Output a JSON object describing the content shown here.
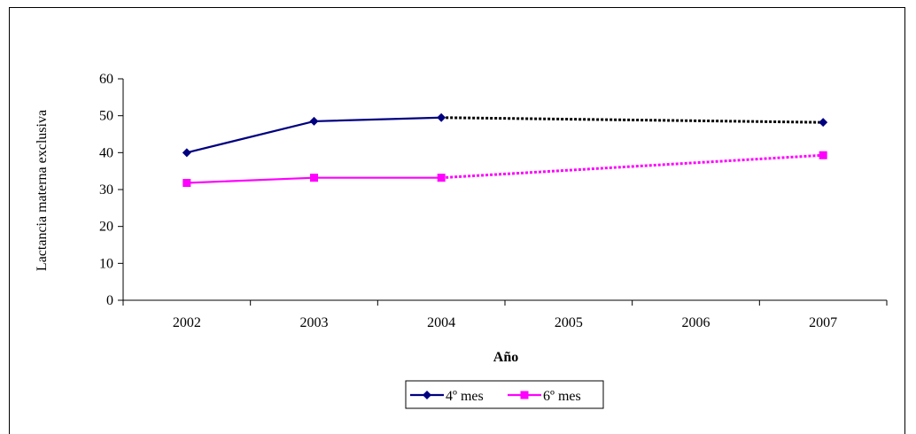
{
  "chart_data": {
    "type": "line",
    "title": "",
    "xlabel": "Año",
    "ylabel": "Lactancia materna exclusiva",
    "categories": [
      "2002",
      "2003",
      "2004",
      "2005",
      "2006",
      "2007"
    ],
    "ylim": [
      0,
      60
    ],
    "yticks": [
      0,
      10,
      20,
      30,
      40,
      50,
      60
    ],
    "grid": false,
    "legend_position": "bottom",
    "series": [
      {
        "name": "4º mes",
        "color": "#000080",
        "marker": "diamond",
        "points": [
          {
            "x": "2002",
            "y": 40
          },
          {
            "x": "2003",
            "y": 48.5
          },
          {
            "x": "2004",
            "y": 49.5
          },
          {
            "x": "2007",
            "y": 48.2
          }
        ],
        "projection_color": "#000000"
      },
      {
        "name": "6º mes",
        "color": "#ff00ff",
        "marker": "square",
        "points": [
          {
            "x": "2002",
            "y": 31.8
          },
          {
            "x": "2003",
            "y": 33.2
          },
          {
            "x": "2004",
            "y": 33.2
          },
          {
            "x": "2007",
            "y": 39.3
          }
        ],
        "projection_color": "#ff00ff"
      }
    ]
  }
}
